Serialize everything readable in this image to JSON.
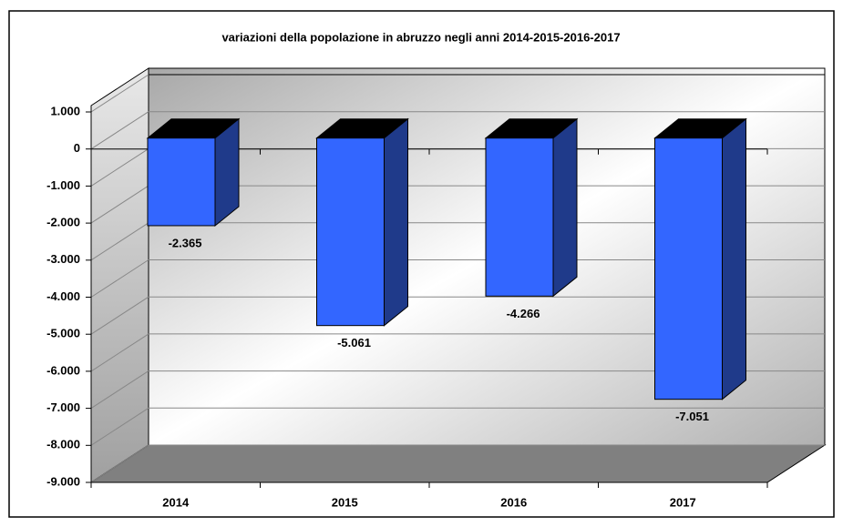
{
  "chart_data": {
    "type": "bar3d",
    "title": "variazioni della popolazione in abruzzo negli anni 2014-2015-2016-2017",
    "categories": [
      "2014",
      "2015",
      "2016",
      "2017"
    ],
    "values": [
      -2365,
      -5061,
      -4266,
      -7051
    ],
    "value_labels": [
      "-2.365",
      "-5.061",
      "-4.266",
      "-7.051"
    ],
    "color": "#3366ff",
    "ylim": [
      -9000,
      1000
    ],
    "yticks": [
      {
        "value": 1000,
        "label": "1.000"
      },
      0,
      {
        "value": -1000,
        "label": "-1.000"
      },
      {
        "value": -2000,
        "label": "-2.000"
      },
      {
        "value": -3000,
        "label": "-3.000"
      },
      {
        "value": -4000,
        "label": "-4.000"
      },
      {
        "value": -5000,
        "label": "-5.000"
      },
      {
        "value": -6000,
        "label": "-6.000"
      },
      {
        "value": -7000,
        "label": "-7.000"
      },
      {
        "value": -8000,
        "label": "-8.000"
      },
      {
        "value": -9000,
        "label": "-9.000"
      }
    ],
    "grid": true
  }
}
